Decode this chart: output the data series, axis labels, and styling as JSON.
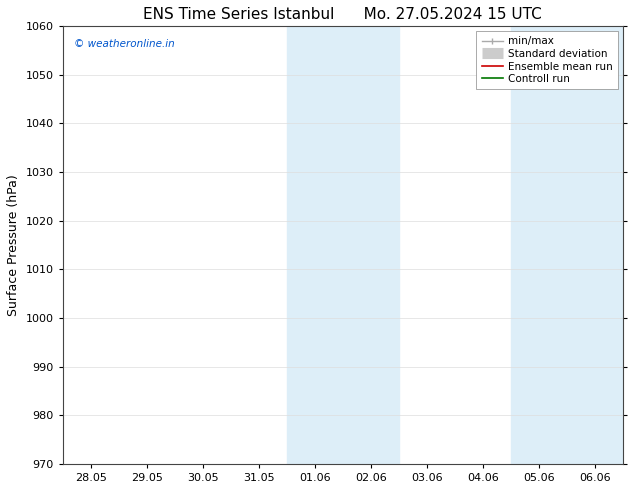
{
  "title_left": "ENS Time Series Istanbul",
  "title_right": "Mo. 27.05.2024 15 UTC",
  "ylabel": "Surface Pressure (hPa)",
  "ylim": [
    970,
    1060
  ],
  "yticks": [
    970,
    980,
    990,
    1000,
    1010,
    1020,
    1030,
    1040,
    1050,
    1060
  ],
  "xtick_labels": [
    "28.05",
    "29.05",
    "30.05",
    "31.05",
    "01.06",
    "02.06",
    "03.06",
    "04.06",
    "05.06",
    "06.06"
  ],
  "xtick_positions": [
    0,
    1,
    2,
    3,
    4,
    5,
    6,
    7,
    8,
    9
  ],
  "xlim": [
    -0.5,
    9.5
  ],
  "shaded_regions": [
    {
      "x_start": 3.5,
      "x_end": 5.5,
      "color": "#ddeef8"
    },
    {
      "x_start": 7.5,
      "x_end": 9.5,
      "color": "#ddeef8"
    }
  ],
  "watermark_text": "© weatheronline.in",
  "watermark_color": "#0055cc",
  "legend_items": [
    {
      "label": "min/max",
      "color": "#aaaaaa",
      "linestyle": "-",
      "linewidth": 1.0,
      "type": "line_with_caps"
    },
    {
      "label": "Standard deviation",
      "color": "#cccccc",
      "linestyle": "-",
      "linewidth": 8,
      "type": "thick_line"
    },
    {
      "label": "Ensemble mean run",
      "color": "#cc0000",
      "linestyle": "-",
      "linewidth": 1.2,
      "type": "line"
    },
    {
      "label": "Controll run",
      "color": "#007700",
      "linestyle": "-",
      "linewidth": 1.2,
      "type": "line"
    }
  ],
  "background_color": "#ffffff",
  "grid_color": "#dddddd",
  "title_fontsize": 11,
  "axis_fontsize": 9,
  "tick_fontsize": 8,
  "legend_fontsize": 7.5
}
